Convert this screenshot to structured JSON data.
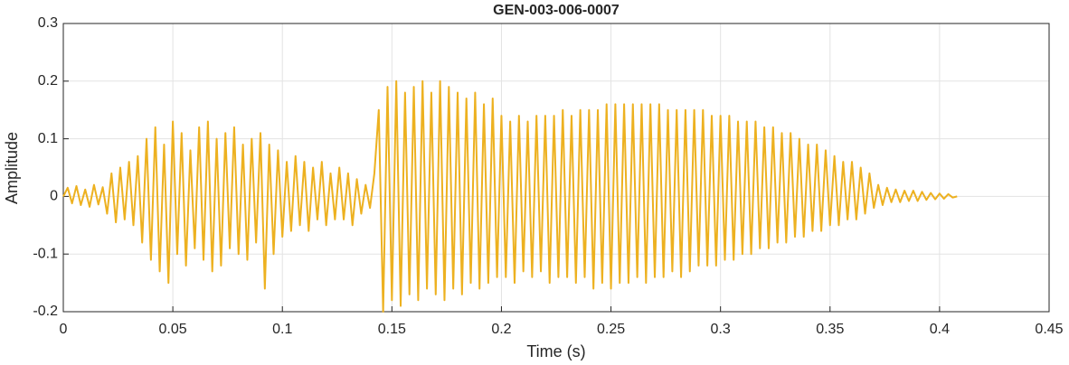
{
  "chart_data": {
    "type": "line",
    "title": "GEN-003-006-0007",
    "x_label": "Time (s)",
    "y_label": "Amplitude",
    "xlim": [
      0,
      0.45
    ],
    "ylim": [
      -0.2,
      0.3
    ],
    "xticks": [
      0,
      0.05,
      0.1,
      0.15,
      0.2,
      0.25,
      0.3,
      0.35,
      0.4,
      0.45
    ],
    "yticks": [
      -0.2,
      -0.1,
      0,
      0.1,
      0.2,
      0.3
    ],
    "grid": true,
    "x": [
      0,
      0.002,
      0.004,
      0.006,
      0.008,
      0.01,
      0.012,
      0.014,
      0.016,
      0.018,
      0.02,
      0.022,
      0.024,
      0.026,
      0.028,
      0.03,
      0.032,
      0.034,
      0.036,
      0.038,
      0.04,
      0.042,
      0.044,
      0.046,
      0.048,
      0.05,
      0.052,
      0.054,
      0.056,
      0.058,
      0.06,
      0.062,
      0.064,
      0.066,
      0.068,
      0.07,
      0.072,
      0.074,
      0.076,
      0.078,
      0.08,
      0.082,
      0.084,
      0.086,
      0.088,
      0.09,
      0.092,
      0.094,
      0.096,
      0.098,
      0.1,
      0.102,
      0.104,
      0.106,
      0.108,
      0.11,
      0.112,
      0.114,
      0.116,
      0.118,
      0.12,
      0.122,
      0.124,
      0.126,
      0.128,
      0.13,
      0.132,
      0.134,
      0.136,
      0.138,
      0.14,
      0.142,
      0.144,
      0.146,
      0.148,
      0.15,
      0.152,
      0.154,
      0.156,
      0.158,
      0.16,
      0.162,
      0.164,
      0.166,
      0.168,
      0.17,
      0.172,
      0.174,
      0.176,
      0.178,
      0.18,
      0.182,
      0.184,
      0.186,
      0.188,
      0.19,
      0.192,
      0.194,
      0.196,
      0.198,
      0.2,
      0.202,
      0.204,
      0.206,
      0.208,
      0.21,
      0.212,
      0.214,
      0.216,
      0.218,
      0.22,
      0.222,
      0.224,
      0.226,
      0.228,
      0.23,
      0.232,
      0.234,
      0.236,
      0.238,
      0.24,
      0.242,
      0.244,
      0.246,
      0.248,
      0.25,
      0.252,
      0.254,
      0.256,
      0.258,
      0.26,
      0.262,
      0.264,
      0.266,
      0.268,
      0.27,
      0.272,
      0.274,
      0.276,
      0.278,
      0.28,
      0.282,
      0.284,
      0.286,
      0.288,
      0.29,
      0.292,
      0.294,
      0.296,
      0.298,
      0.3,
      0.302,
      0.304,
      0.306,
      0.308,
      0.31,
      0.312,
      0.314,
      0.316,
      0.318,
      0.32,
      0.322,
      0.324,
      0.326,
      0.328,
      0.33,
      0.332,
      0.334,
      0.336,
      0.338,
      0.34,
      0.342,
      0.344,
      0.346,
      0.348,
      0.35,
      0.352,
      0.354,
      0.356,
      0.358,
      0.36,
      0.362,
      0.364,
      0.366,
      0.368,
      0.37,
      0.372,
      0.374,
      0.376,
      0.378,
      0.38,
      0.382,
      0.384,
      0.386,
      0.388,
      0.39,
      0.392,
      0.394,
      0.396,
      0.398,
      0.4,
      0.402,
      0.404,
      0.406,
      0.408
    ],
    "series": [
      {
        "color": "#EDB120",
        "values": [
          0,
          0.015,
          -0.012,
          0.018,
          -0.015,
          0.012,
          -0.018,
          0.02,
          -0.014,
          0.016,
          -0.03,
          0.04,
          -0.045,
          0.05,
          -0.04,
          0.06,
          -0.05,
          0.07,
          -0.08,
          0.1,
          -0.11,
          0.12,
          -0.13,
          0.09,
          -0.15,
          0.13,
          -0.1,
          0.11,
          -0.12,
          0.08,
          -0.09,
          0.12,
          -0.11,
          0.13,
          -0.13,
          0.1,
          -0.12,
          0.11,
          -0.09,
          0.12,
          -0.1,
          0.09,
          -0.11,
          0.1,
          -0.08,
          0.11,
          -0.16,
          0.09,
          -0.1,
          0.08,
          -0.07,
          0.06,
          -0.06,
          0.07,
          -0.05,
          0.06,
          -0.06,
          0.05,
          -0.04,
          0.06,
          -0.05,
          0.04,
          -0.04,
          0.05,
          -0.04,
          0.04,
          -0.05,
          0.03,
          -0.03,
          0.02,
          -0.02,
          0.04,
          0.15,
          -0.2,
          0.19,
          -0.18,
          0.2,
          -0.19,
          0.18,
          -0.17,
          0.19,
          -0.18,
          0.2,
          -0.16,
          0.18,
          -0.17,
          0.2,
          -0.18,
          0.19,
          -0.16,
          0.18,
          -0.17,
          0.17,
          -0.15,
          0.18,
          -0.16,
          0.16,
          -0.15,
          0.17,
          -0.14,
          0.14,
          -0.14,
          0.13,
          -0.15,
          0.14,
          -0.13,
          0.13,
          -0.14,
          0.14,
          -0.13,
          0.14,
          -0.15,
          0.14,
          -0.14,
          0.15,
          -0.14,
          0.14,
          -0.15,
          0.15,
          -0.14,
          0.15,
          -0.16,
          0.15,
          -0.15,
          0.16,
          -0.16,
          0.16,
          -0.15,
          0.16,
          -0.15,
          0.16,
          -0.14,
          0.16,
          -0.15,
          0.16,
          -0.14,
          0.16,
          -0.14,
          0.15,
          -0.13,
          0.15,
          -0.14,
          0.15,
          -0.13,
          0.15,
          -0.12,
          0.15,
          -0.12,
          0.14,
          -0.12,
          0.14,
          -0.11,
          0.14,
          -0.11,
          0.13,
          -0.1,
          0.13,
          -0.1,
          0.13,
          -0.09,
          0.12,
          -0.09,
          0.12,
          -0.08,
          0.11,
          -0.08,
          0.11,
          -0.07,
          0.1,
          -0.07,
          0.09,
          -0.06,
          0.09,
          -0.06,
          0.08,
          -0.05,
          0.07,
          -0.05,
          0.06,
          -0.04,
          0.06,
          -0.04,
          0.05,
          -0.03,
          0.04,
          -0.02,
          0.02,
          -0.015,
          0.015,
          -0.01,
          0.012,
          -0.01,
          0.01,
          -0.008,
          0.01,
          -0.008,
          0.008,
          -0.006,
          0.006,
          -0.005,
          0.005,
          -0.004,
          0.004,
          -0.002,
          0
        ]
      }
    ]
  }
}
